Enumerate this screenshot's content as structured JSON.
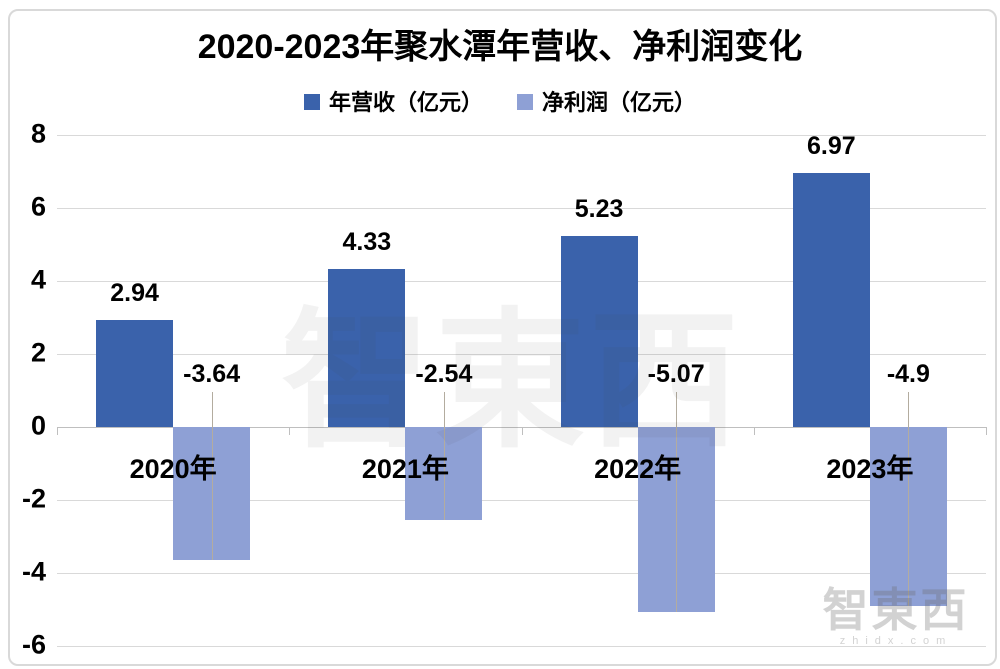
{
  "chart_data": {
    "type": "bar",
    "title": "2020-2023年聚水潭年营收、净利润变化",
    "categories": [
      "2020年",
      "2021年",
      "2022年",
      "2023年"
    ],
    "series": [
      {
        "name": "年营收（亿元）",
        "color": "#3a62ab",
        "values": [
          2.94,
          4.33,
          5.23,
          6.97
        ],
        "labels": [
          "2.94",
          "4.33",
          "5.23",
          "6.97"
        ]
      },
      {
        "name": "净利润（亿元）",
        "color": "#8ea0d5",
        "values": [
          -3.64,
          -2.54,
          -5.07,
          -4.9
        ],
        "labels": [
          "-3.64",
          "-2.54",
          "-5.07",
          "-4.9"
        ]
      }
    ],
    "ylim": [
      -6,
      8
    ],
    "yticks": [
      8,
      6,
      4,
      2,
      0,
      -2,
      -4,
      -6
    ],
    "grid": true,
    "legend_position": "top",
    "gridline_color": "#d9d9d9",
    "zero_axis_color": "#bfbfbf"
  },
  "watermark": {
    "center_text": "智東西",
    "corner_text": "智東西",
    "corner_subtext": "zhidx.com"
  }
}
